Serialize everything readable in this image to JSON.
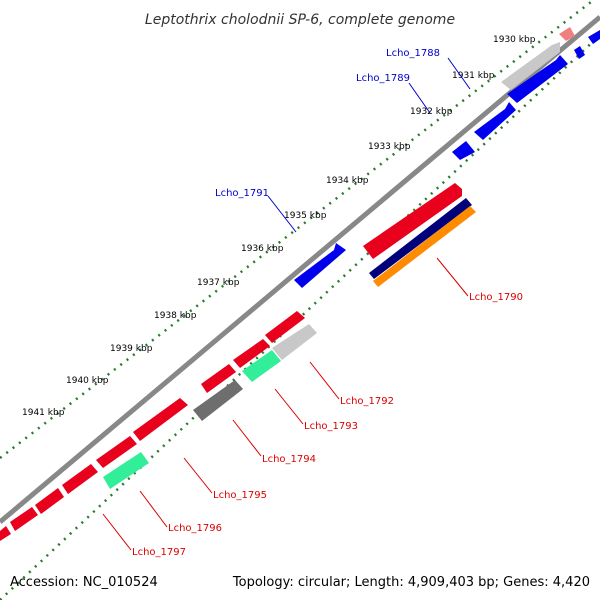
{
  "title": "Leptothrix cholodnii SP-6, complete genome",
  "footer": {
    "accession": "Accession: NC_010524",
    "summary": "Topology: circular; Length: 4,909,403 bp; Genes: 4,420"
  },
  "colors": {
    "backbone": "#888888",
    "tick_dots": "#2a7a2a",
    "reverse_gene": "#e8001c",
    "forward_gene": "#0000ee",
    "label_forward": "#0000cc",
    "label_reverse": "#dd0000",
    "gray_light": "#c8c8c8",
    "gray_dark": "#6e6e6e",
    "green": "#33ee99",
    "pink": "#f08080",
    "orange": "#ff8c00",
    "navy": "#00007a"
  },
  "ticks": [
    "1930 kbp",
    "1931 kbp",
    "1932 kbp",
    "1933 kbp",
    "1934 kbp",
    "1935 kbp",
    "1936 kbp",
    "1937 kbp",
    "1938 kbp",
    "1939 kbp",
    "1940 kbp",
    "1941 kbp"
  ],
  "labels_forward": [
    "Lcho_1788",
    "Lcho_1789",
    "Lcho_1791"
  ],
  "labels_reverse": [
    "Lcho_1790",
    "Lcho_1792",
    "Lcho_1793",
    "Lcho_1794",
    "Lcho_1795",
    "Lcho_1796",
    "Lcho_1797"
  ]
}
